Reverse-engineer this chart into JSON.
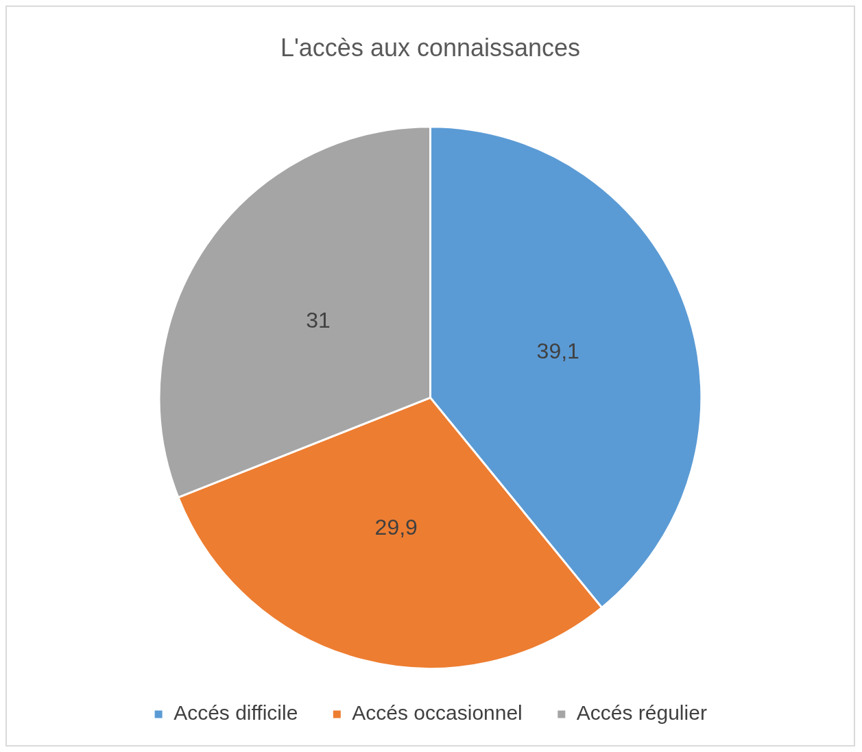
{
  "chart_data": {
    "type": "pie",
    "title": "L'accès aux connaissances",
    "categories": [
      "Accés difficile",
      "Accés occasionnel",
      "Accés régulier"
    ],
    "values": [
      39.1,
      29.9,
      31
    ],
    "value_labels": [
      "39,1",
      "29,9",
      "31"
    ],
    "colors": [
      "#5b9bd5",
      "#ed7d31",
      "#a5a5a5"
    ],
    "legend": "bottom"
  }
}
